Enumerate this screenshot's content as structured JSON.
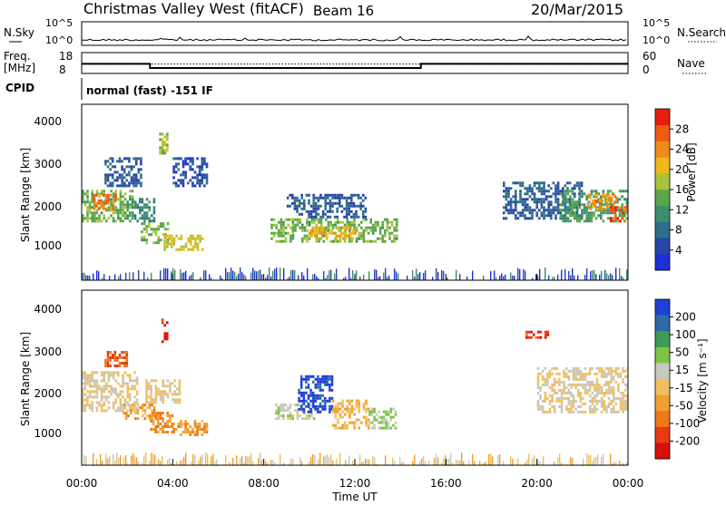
{
  "header": {
    "station": "Christmas Valley West (fitACF)",
    "beam": "Beam 16",
    "date": "20/Mar/2015"
  },
  "summary": {
    "nsky_label": "N.Sky",
    "nsearch_label": "N.Search",
    "noise_ticks_left": [
      "10^5",
      "10^0"
    ],
    "noise_ticks_right": [
      "10^5",
      "10^0"
    ],
    "freq_label_lines": [
      "Freq.",
      "[MHz]"
    ],
    "freq_ticks": [
      "18",
      "8"
    ],
    "nave_label": "Nave",
    "nave_ticks": [
      "60",
      "0"
    ],
    "cpid_label": "CPID",
    "cpid_text": "normal (fast) -151 IF",
    "freq_steps": [
      {
        "t": 0,
        "mhz": 12.6
      },
      {
        "t": 3.0,
        "mhz": 10.6
      },
      {
        "t": 14.9,
        "mhz": 12.6
      },
      {
        "t": 24,
        "mhz": 12.6
      }
    ],
    "nave_level": 0.45
  },
  "time_axis": {
    "label": "Time UT",
    "ticks": [
      "00:00",
      "04:00",
      "08:00",
      "12:00",
      "16:00",
      "20:00",
      "00:00"
    ]
  },
  "power_panel": {
    "ylabel": "Slant Range [km]",
    "yticks": [
      "1000",
      "2000",
      "3000",
      "4000"
    ],
    "colorbar_label": "Power [dB]",
    "colorbar_ticks": [
      "4",
      "8",
      "12",
      "16",
      "20",
      "24",
      "28"
    ]
  },
  "velocity_panel": {
    "ylabel": "Slant Range [km]",
    "yticks": [
      "1000",
      "2000",
      "3000",
      "4000"
    ],
    "colorbar_label": "Velocity [m s⁻¹]",
    "colorbar_ticks": [
      "200",
      "100",
      "50",
      "15",
      "-15",
      "-50",
      "-100",
      "-200"
    ]
  },
  "colors": {
    "power_scale": [
      "#1c2fd8",
      "#2846a8",
      "#2f6e8a",
      "#3b8f6a",
      "#5aa54a",
      "#a8c43a",
      "#f0b818",
      "#f08a18",
      "#f05a12",
      "#e81e10"
    ],
    "velocity_scale": [
      "#1f3fd6",
      "#2c6aa8",
      "#3f9a58",
      "#7cc442",
      "#c8c8c0",
      "#f0c060",
      "#f0a030",
      "#f07818",
      "#e83a12",
      "#d8100c"
    ]
  },
  "chart_data": [
    {
      "type": "heatmap",
      "panel": "power",
      "x_units": "hours UT",
      "y_units": "km",
      "xlim": [
        0,
        24
      ],
      "ylim": [
        180,
        4500
      ],
      "zlim": [
        0,
        30
      ],
      "z_units": "dB",
      "regions": [
        {
          "x0": 0.0,
          "x1": 2.2,
          "y0": 1600,
          "y1": 2400,
          "z": 14
        },
        {
          "x0": 0.5,
          "x1": 1.5,
          "y0": 1900,
          "y1": 2300,
          "z": 24
        },
        {
          "x0": 1.0,
          "x1": 2.6,
          "y0": 2500,
          "y1": 3200,
          "z": 6
        },
        {
          "x0": 2.2,
          "x1": 3.2,
          "y0": 1600,
          "y1": 2200,
          "z": 10
        },
        {
          "x0": 2.6,
          "x1": 3.8,
          "y0": 1100,
          "y1": 1600,
          "z": 14
        },
        {
          "x0": 3.4,
          "x1": 3.8,
          "y0": 3300,
          "y1": 3800,
          "z": 16
        },
        {
          "x0": 3.6,
          "x1": 5.3,
          "y0": 900,
          "y1": 1300,
          "z": 18
        },
        {
          "x0": 4.0,
          "x1": 5.5,
          "y0": 2500,
          "y1": 3200,
          "z": 5
        },
        {
          "x0": 8.3,
          "x1": 13.8,
          "y0": 1100,
          "y1": 1700,
          "z": 14
        },
        {
          "x0": 9.0,
          "x1": 12.5,
          "y0": 1700,
          "y1": 2300,
          "z": 6
        },
        {
          "x0": 10.0,
          "x1": 12.0,
          "y0": 1200,
          "y1": 1500,
          "z": 20
        },
        {
          "x0": 18.5,
          "x1": 22.0,
          "y0": 1700,
          "y1": 2600,
          "z": 6
        },
        {
          "x0": 21.0,
          "x1": 24.0,
          "y0": 1600,
          "y1": 2400,
          "z": 12
        },
        {
          "x0": 22.2,
          "x1": 23.5,
          "y0": 1900,
          "y1": 2300,
          "z": 22
        },
        {
          "x0": 23.2,
          "x1": 24.0,
          "y0": 1600,
          "y1": 2000,
          "z": 26
        }
      ]
    },
    {
      "type": "heatmap",
      "panel": "velocity",
      "x_units": "hours UT",
      "y_units": "km",
      "xlim": [
        0,
        24
      ],
      "ylim": [
        180,
        4500
      ],
      "zlim": [
        -200,
        200
      ],
      "z_units": "m/s",
      "regions": [
        {
          "x0": 0.0,
          "x1": 2.4,
          "y0": 1500,
          "y1": 2500,
          "z": 0
        },
        {
          "x0": 1.0,
          "x1": 2.0,
          "y0": 2600,
          "y1": 3000,
          "z": -120
        },
        {
          "x0": 1.8,
          "x1": 3.2,
          "y0": 1300,
          "y1": 1700,
          "z": -60
        },
        {
          "x0": 3.0,
          "x1": 4.0,
          "y0": 1000,
          "y1": 1500,
          "z": -80
        },
        {
          "x0": 3.5,
          "x1": 3.8,
          "y0": 3200,
          "y1": 3800,
          "z": -180
        },
        {
          "x0": 4.0,
          "x1": 5.5,
          "y0": 900,
          "y1": 1300,
          "z": -70
        },
        {
          "x0": 2.8,
          "x1": 4.3,
          "y0": 1700,
          "y1": 2300,
          "z": 0
        },
        {
          "x0": 8.5,
          "x1": 10.2,
          "y0": 1300,
          "y1": 1700,
          "z": 30
        },
        {
          "x0": 9.5,
          "x1": 11.0,
          "y0": 1500,
          "y1": 2400,
          "z": 180
        },
        {
          "x0": 11.0,
          "x1": 12.6,
          "y0": 1100,
          "y1": 1800,
          "z": -40
        },
        {
          "x0": 12.6,
          "x1": 13.8,
          "y0": 1100,
          "y1": 1600,
          "z": 40
        },
        {
          "x0": 20.0,
          "x1": 24.0,
          "y0": 1500,
          "y1": 2600,
          "z": 0
        },
        {
          "x0": 19.5,
          "x1": 20.5,
          "y0": 3300,
          "y1": 3500,
          "z": -150
        }
      ]
    }
  ]
}
